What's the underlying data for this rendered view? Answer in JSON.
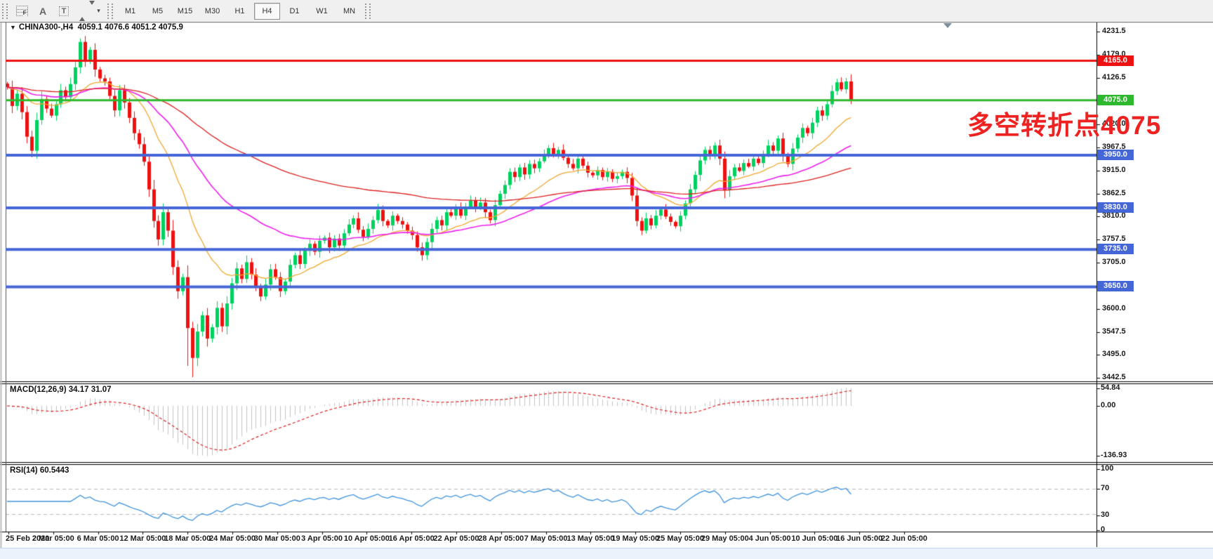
{
  "toolbar": {
    "tools": [
      {
        "name": "fibonacci",
        "label": "F"
      },
      {
        "name": "text",
        "label": "A"
      },
      {
        "name": "text-label",
        "label": "T"
      },
      {
        "name": "arrows",
        "label": ""
      }
    ],
    "timeframes": [
      "M1",
      "M5",
      "M15",
      "M30",
      "H1",
      "H4",
      "D1",
      "W1",
      "MN"
    ],
    "active_timeframe": "H4"
  },
  "header": {
    "symbol": "CHINA300-,H4",
    "ohlc": "4059.1 4076.6 4051.2 4075.9",
    "dropdown_triangle": "▼"
  },
  "annotation": {
    "text": "多空转折点4075",
    "color": "#ef2222"
  },
  "chart_data": {
    "type": "candlestick",
    "symbol_timeframe": "CHINA300-,H4",
    "ohlc_display": {
      "open": "4059.1",
      "high": "4076.6",
      "low": "4051.2",
      "close": "4075.9"
    },
    "price_axis_ticks": [
      "4231.5",
      "4179.0",
      "4126.5",
      "4020.0",
      "3967.5",
      "3915.0",
      "3862.5",
      "3810.0",
      "3757.5",
      "3705.0",
      "3600.0",
      "3547.5",
      "3495.0",
      "3442.5"
    ],
    "level_lines": [
      {
        "price": 4165.0,
        "label": "4165.0",
        "color": "#ee1111",
        "width": 3
      },
      {
        "price": 4075.0,
        "label": "4075.0",
        "color": "#2db92d",
        "width": 3
      },
      {
        "price": 3950.0,
        "label": "3950.0",
        "color": "#4566d6",
        "width": 4
      },
      {
        "price": 3830.0,
        "label": "3830.0",
        "color": "#4566d6",
        "width": 4
      },
      {
        "price": 3735.0,
        "label": "3735.0",
        "color": "#4566d6",
        "width": 4
      },
      {
        "price": 3650.0,
        "label": "3650.0",
        "color": "#4566d6",
        "width": 4
      }
    ],
    "time_labels": [
      "25 Feb 2020",
      "2 Mar 05:00",
      "6 Mar 05:00",
      "12 Mar 05:00",
      "18 Mar 05:00",
      "24 Mar 05:00",
      "30 Mar 05:00",
      "3 Apr 05:00",
      "10 Apr 05:00",
      "16 Apr 05:00",
      "22 Apr 05:00",
      "28 Apr 05:00",
      "7 May 05:00",
      "13 May 05:00",
      "19 May 05:00",
      "25 May 05:00",
      "29 May 05:00",
      "4 Jun 05:00",
      "10 Jun 05:00",
      "16 Jun 05:00",
      "22 Jun 05:00"
    ],
    "closes": [
      4105,
      4062,
      4090,
      4048,
      3992,
      3960,
      4030,
      4078,
      4056,
      4040,
      4066,
      4098,
      4082,
      4112,
      4150,
      4208,
      4166,
      4190,
      4145,
      4125,
      4118,
      4085,
      4052,
      4098,
      4070,
      4035,
      4000,
      3975,
      3935,
      3872,
      3800,
      3758,
      3820,
      3778,
      3695,
      3640,
      3672,
      3556,
      3488,
      3548,
      3585,
      3532,
      3558,
      3602,
      3560,
      3612,
      3658,
      3692,
      3668,
      3706,
      3678,
      3648,
      3628,
      3655,
      3690,
      3672,
      3640,
      3662,
      3700,
      3722,
      3702,
      3732,
      3748,
      3730,
      3755,
      3762,
      3740,
      3760,
      3744,
      3772,
      3792,
      3806,
      3780,
      3764,
      3782,
      3802,
      3825,
      3800,
      3790,
      3812,
      3800,
      3792,
      3778,
      3768,
      3740,
      3722,
      3752,
      3782,
      3802,
      3790,
      3820,
      3812,
      3830,
      3812,
      3832,
      3846,
      3830,
      3842,
      3820,
      3802,
      3836,
      3862,
      3882,
      3912,
      3900,
      3922,
      3906,
      3930,
      3920,
      3936,
      3952,
      3966,
      3950,
      3962,
      3944,
      3930,
      3920,
      3942,
      3926,
      3910,
      3904,
      3916,
      3900,
      3912,
      3896,
      3902,
      3912,
      3898,
      3858,
      3800,
      3778,
      3806,
      3790,
      3812,
      3826,
      3810,
      3798,
      3788,
      3812,
      3840,
      3872,
      3905,
      3938,
      3962,
      3950,
      3972,
      3942,
      3870,
      3902,
      3922,
      3914,
      3932,
      3924,
      3942,
      3932,
      3952,
      3972,
      3960,
      3988,
      3950,
      3930,
      3965,
      3990,
      4012,
      4000,
      4024,
      4052,
      4040,
      4066,
      4096,
      4116,
      4100,
      4118,
      4076
    ],
    "wick_low_overrides": {
      "38": 3444,
      "37": 3470
    },
    "wick_high_overrides": {
      "15": 4216
    },
    "moving_averages": [
      {
        "name": "fast-ma",
        "period": 18,
        "color": "#f0a830"
      },
      {
        "name": "mid-ma",
        "period": 45,
        "color": "#ee22ee"
      },
      {
        "name": "slow-ma",
        "period": 110,
        "color": "#dd2020"
      }
    ],
    "indicators": [
      {
        "name": "MACD",
        "label": "MACD(12,26,9)",
        "values_text": "34.17 31.07",
        "scale": [
          "54.84",
          "0.00",
          "-136.93"
        ]
      },
      {
        "name": "RSI",
        "label": "RSI(14)",
        "values_text": "60.5443",
        "scale": [
          "100",
          "70",
          "30",
          "0"
        ],
        "levels": [
          70,
          30
        ]
      }
    ]
  },
  "colors": {
    "bull": "#00d25f",
    "bear": "#ee1111",
    "macd_hist": "#c4c4c4",
    "macd_signal": "#dd2020",
    "rsi_line": "#3f94de",
    "axis_text": "#1a1a1a",
    "dashed_level": "#b9b9b9"
  }
}
